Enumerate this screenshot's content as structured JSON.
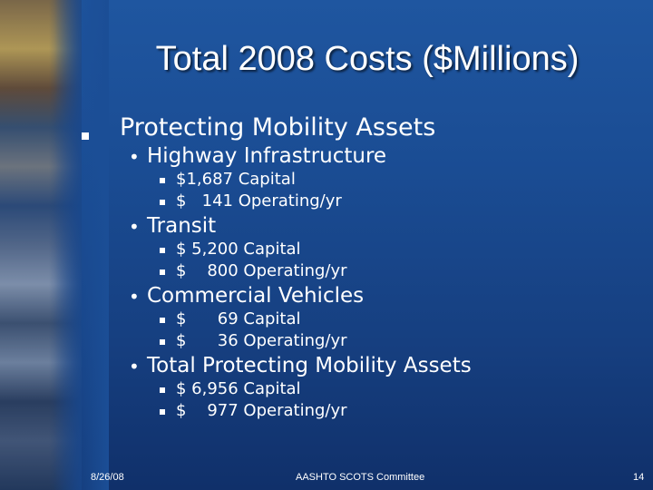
{
  "slide": {
    "title": "Total 2008 Costs ($Millions)",
    "level1": {
      "label": "Protecting Mobility Assets"
    },
    "sections": [
      {
        "label": "Highway Infrastructure",
        "items": [
          "$1,687 Capital",
          "$   141 Operating/yr"
        ]
      },
      {
        "label": "Transit",
        "items": [
          "$ 5,200 Capital",
          "$    800 Operating/yr"
        ]
      },
      {
        "label": "Commercial Vehicles",
        "items": [
          "$      69 Capital",
          "$      36 Operating/yr"
        ]
      },
      {
        "label": "Total Protecting Mobility Assets",
        "items": [
          "$ 6,956 Capital",
          "$    977 Operating/yr"
        ]
      }
    ],
    "footer": {
      "date": "8/26/08",
      "center": "AASHTO SCOTS Committee",
      "page": "14"
    }
  },
  "colors": {
    "background": "#1a4c93",
    "text": "#ffffff"
  }
}
